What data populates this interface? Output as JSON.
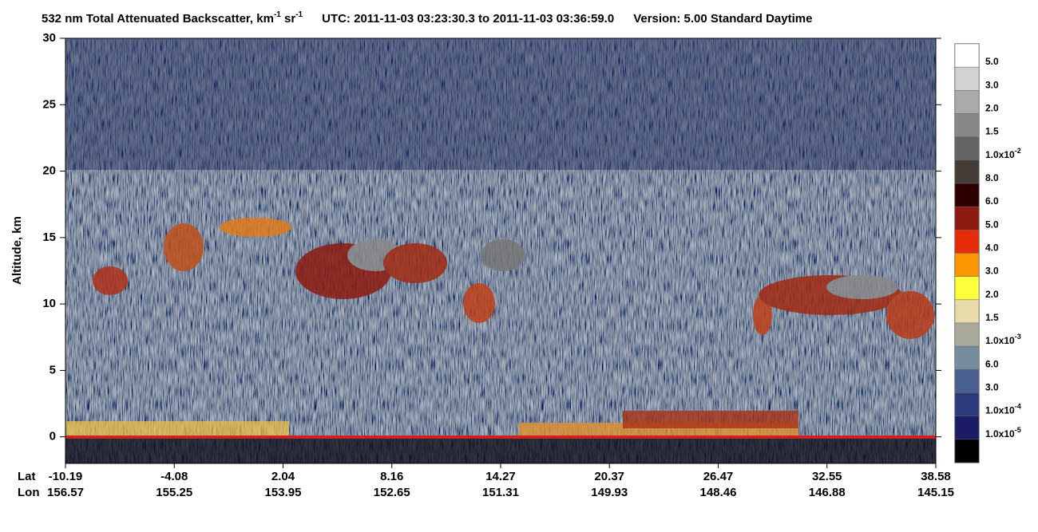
{
  "chart_data": {
    "type": "curtain",
    "title": {
      "part1": "532 nm Total Attenuated Backscatter, km",
      "sup1": "-1",
      "part2": " sr",
      "sup2": "-1",
      "utc": "UTC:  2011-11-03 03:23:30.3  to  2011-11-03 03:36:59.0",
      "version": "Version: 5.00  Standard  Daytime"
    },
    "y_label": "Altitude, km",
    "ylim": [
      -2,
      30
    ],
    "yticks": [
      0,
      5,
      10,
      15,
      20,
      25,
      30
    ],
    "x_row_labels": [
      "Lat",
      "Lon"
    ],
    "lat": [
      -10.19,
      -4.08,
      2.04,
      8.16,
      14.27,
      20.37,
      26.47,
      32.55,
      38.58
    ],
    "lon": [
      156.57,
      155.25,
      153.95,
      152.65,
      151.31,
      149.93,
      148.46,
      146.88,
      145.15
    ],
    "colorbar": {
      "colors": [
        "#ffffff",
        "#d2d2d2",
        "#aaaaaa",
        "#888888",
        "#646464",
        "#463c37",
        "#2d0000",
        "#8c1a10",
        "#e62d0a",
        "#fa9600",
        "#ffff3c",
        "#eadcaa",
        "#aaaa9a",
        "#788ca0",
        "#4a6090",
        "#2a3a7a",
        "#1c1c66",
        "#000000"
      ],
      "labels": [
        {
          "base": "5.0"
        },
        {
          "base": "3.0"
        },
        {
          "base": "2.0"
        },
        {
          "base": "1.5"
        },
        {
          "base": "1.0x10",
          "exp": "-2"
        },
        {
          "base": "8.0"
        },
        {
          "base": "6.0"
        },
        {
          "base": "5.0"
        },
        {
          "base": "4.0"
        },
        {
          "base": "3.0"
        },
        {
          "base": "2.0"
        },
        {
          "base": "1.5"
        },
        {
          "base": "1.0x10",
          "exp": "-3"
        },
        {
          "base": "6.0"
        },
        {
          "base": "3.0"
        },
        {
          "base": "1.0x10",
          "exp": "-4"
        },
        {
          "base": "1.0x10",
          "exp": "-5"
        }
      ]
    }
  }
}
